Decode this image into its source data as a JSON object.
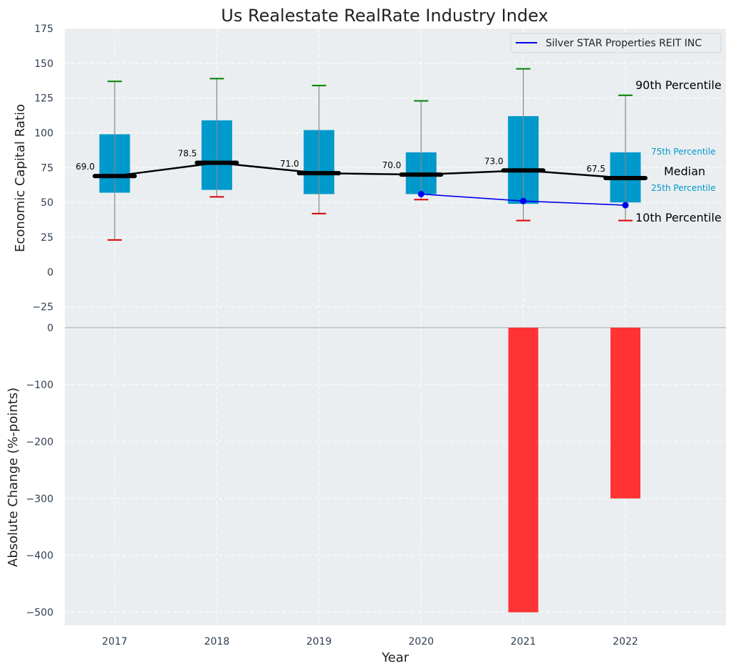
{
  "chart_data": [
    {
      "type": "box",
      "title": "Us Realestate RealRate Industry Index",
      "ylabel": "Economic Capital Ratio",
      "ylim": [
        -40,
        175
      ],
      "yticks": [
        175,
        150,
        125,
        100,
        75,
        50,
        25,
        0,
        -25
      ],
      "ytick_labels": [
        "175",
        "150",
        "125",
        "100",
        "75",
        "50",
        "25",
        "0",
        "−25"
      ],
      "categories": [
        "2017",
        "2018",
        "2019",
        "2020",
        "2021",
        "2022"
      ],
      "p90": [
        137,
        139,
        134,
        123,
        146,
        127
      ],
      "p75": [
        99,
        109,
        102,
        86,
        112,
        86
      ],
      "median": [
        69.0,
        78.5,
        71.0,
        70.0,
        73.0,
        67.5
      ],
      "median_labels": [
        "69.0",
        "78.5",
        "71.0",
        "70.0",
        "73.0",
        "67.5"
      ],
      "p25": [
        57,
        59,
        56,
        56,
        49,
        50
      ],
      "p10": [
        23,
        54,
        42,
        52,
        37,
        37
      ],
      "series": [
        {
          "name": "Silver STAR Properties REIT INC",
          "x": [
            "2020",
            "2021",
            "2022"
          ],
          "values": [
            56,
            51,
            48
          ],
          "color": "#0000ee"
        }
      ],
      "annotations": {
        "p90": "90th Percentile",
        "p75": "75th Percentile",
        "median": "Median",
        "p25": "25th Percentile",
        "p10": "10th Percentile"
      },
      "legend_position": "top-right",
      "grid": true
    },
    {
      "type": "bar",
      "ylabel": "Absolute Change (%-points)",
      "xlabel": "Year",
      "ylim": [
        -523,
        0
      ],
      "yticks": [
        0,
        -100,
        -200,
        -300,
        -400,
        -500
      ],
      "ytick_labels": [
        "0",
        "−100",
        "−200",
        "−300",
        "−400",
        "−500"
      ],
      "categories": [
        "2017",
        "2018",
        "2019",
        "2020",
        "2021",
        "2022"
      ],
      "values": [
        0,
        0,
        0,
        0,
        -500,
        -300
      ],
      "grid": true
    }
  ],
  "colors": {
    "panel_bg": "#eaeef0",
    "box": "#0099cc",
    "median_line": "#000000",
    "whisker": "#888888",
    "cap_high": "#008000",
    "cap_low": "#dd0000",
    "bar": "#ff3333",
    "series": "#0000ee",
    "percentile_text": "#0099cc"
  }
}
